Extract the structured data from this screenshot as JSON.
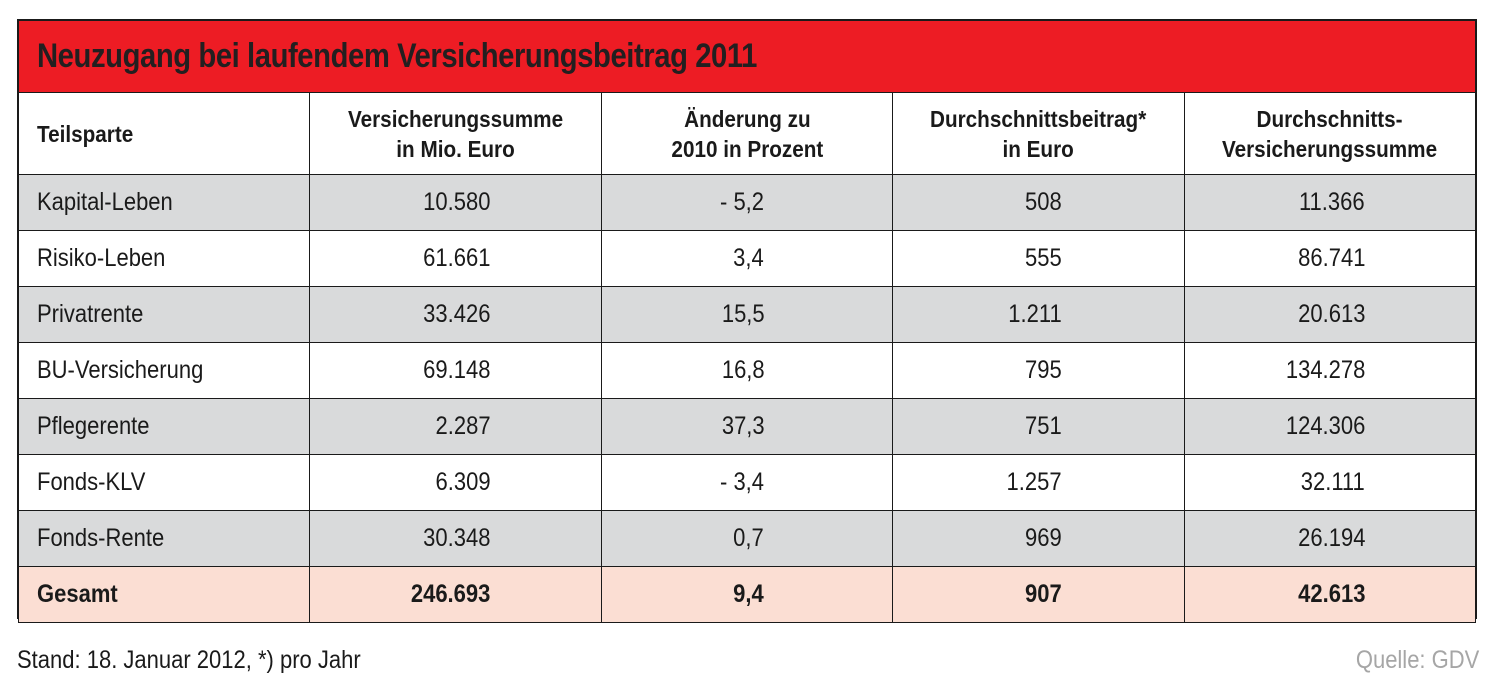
{
  "chart_data": {
    "type": "table",
    "title": "Neuzugang bei laufendem Versicherungsbeitrag 2011",
    "columns": [
      "Teilsparte",
      "Versicherungssumme in Mio. Euro",
      "Änderung zu 2010 in Prozent",
      "Durchschnittsbeitrag* in Euro",
      "Durchschnitts-Versicherungssumme"
    ],
    "header_lines": [
      [
        "Teilsparte"
      ],
      [
        "Versicherungssumme",
        "in Mio. Euro"
      ],
      [
        "Änderung zu",
        "2010 in Prozent"
      ],
      [
        "Durchschnittsbeitrag*",
        "in Euro"
      ],
      [
        "Durchschnitts-",
        "Versicherungssumme"
      ]
    ],
    "rows": [
      [
        "Kapital-Leben",
        "10.580",
        "- 5,2",
        "508",
        "11.366"
      ],
      [
        "Risiko-Leben",
        "61.661",
        "3,4",
        "555",
        "86.741"
      ],
      [
        "Privatrente",
        "33.426",
        "15,5",
        "1.211",
        "20.613"
      ],
      [
        "BU-Versicherung",
        "69.148",
        "16,8",
        "795",
        "134.278"
      ],
      [
        "Pflegerente",
        "2.287",
        "37,3",
        "751",
        "124.306"
      ],
      [
        "Fonds-KLV",
        "6.309",
        "- 3,4",
        "1.257",
        "32.111"
      ],
      [
        "Fonds-Rente",
        "30.348",
        "0,7",
        "969",
        "26.194"
      ]
    ],
    "total": [
      "Gesamt",
      "246.693",
      "9,4",
      "907",
      "42.613"
    ],
    "footnote": "Stand: 18. Januar 2012, *) pro Jahr",
    "source": "Quelle: GDV"
  },
  "colors": {
    "title_background": "#ed1c24",
    "row_grey": "#d9dadb",
    "total_background": "#fbded3",
    "source_text": "#a6a6a6"
  }
}
